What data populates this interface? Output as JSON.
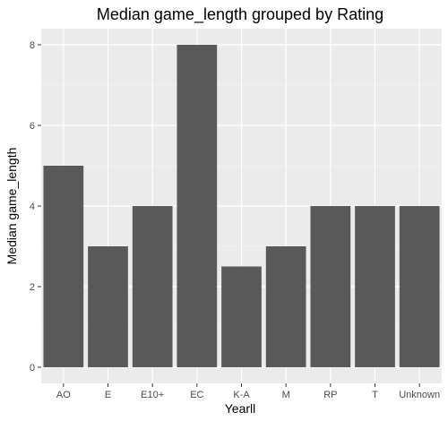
{
  "chart_data": {
    "type": "bar",
    "title": "Median game_length grouped by Rating",
    "xlabel": "Yearll",
    "ylabel": "Median game_length",
    "categories": [
      "AO",
      "E",
      "E10+",
      "EC",
      "K-A",
      "M",
      "RP",
      "T",
      "Unknown"
    ],
    "values": [
      5,
      3,
      4,
      8,
      2.5,
      3,
      4,
      4,
      4
    ],
    "ylim": [
      -0.4,
      8.4
    ],
    "yticks": [
      0,
      2,
      4,
      6,
      8
    ],
    "grid": true,
    "legend": "none",
    "colors": {
      "panel_bg": "#ebebeb",
      "grid_major": "#ffffff",
      "grid_minor": "#f5f5f5",
      "bar_fill": "#595959",
      "tick_mark": "#333333"
    }
  }
}
